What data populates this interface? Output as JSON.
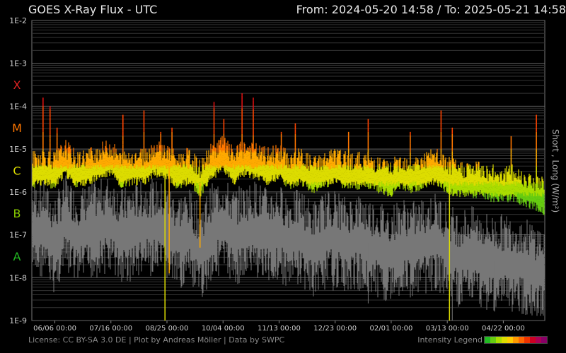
{
  "header": {
    "title": "GOES X-Ray Flux - UTC",
    "range": "From: 2024-05-20 14:58  /  To: 2025-05-21 14:58"
  },
  "footer": {
    "license": "License: CC BY-SA 3.0 DE | Plot by Andreas Möller | Data by SWPC",
    "legend_label": "Intensity Legend",
    "legend_colors": [
      "#22bb22",
      "#66cc11",
      "#aadd00",
      "#dddd00",
      "#ffcc00",
      "#ff9900",
      "#ff6600",
      "#ee3300",
      "#cc0022",
      "#aa0055",
      "#880066"
    ]
  },
  "chart_data": {
    "type": "line",
    "title": "GOES X-Ray Flux - UTC",
    "ylabel_right": "Short , Long (W/m²)",
    "yscale": "log",
    "ylim": [
      1e-09,
      0.01
    ],
    "ytick_labels": [
      "1E-2",
      "1E-3",
      "1E-4",
      "1E-5",
      "1E-6",
      "1E-7",
      "1E-8",
      "1E-9"
    ],
    "class_labels": [
      {
        "label": "X",
        "color": "#dd2222",
        "exponent": -3.5
      },
      {
        "label": "M",
        "color": "#ff7700",
        "exponent": -4.5
      },
      {
        "label": "C",
        "color": "#dddd00",
        "exponent": -5.5
      },
      {
        "label": "B",
        "color": "#88cc00",
        "exponent": -6.5
      },
      {
        "label": "A",
        "color": "#22bb22",
        "exponent": -7.5
      }
    ],
    "xtick_labels": [
      "06/06 00:00",
      "07/16 00:00",
      "08/25 00:00",
      "10/04 00:00",
      "11/13 00:00",
      "12/23 00:00",
      "02/01 00:00",
      "03/13 00:00",
      "04/22 00:00"
    ],
    "xtick_days": [
      16.42,
      56.42,
      96.42,
      136.42,
      176.42,
      216.42,
      256.42,
      296.42,
      336.42
    ],
    "x_range_days": [
      0,
      366
    ],
    "grid": true,
    "series": [
      {
        "name": "Long",
        "color_mode": "intensity",
        "x_days": [
          0,
          8,
          16,
          24,
          32,
          40,
          48,
          56,
          64,
          72,
          80,
          88,
          96,
          104,
          112,
          120,
          128,
          136,
          144,
          152,
          160,
          168,
          176,
          184,
          192,
          200,
          208,
          216,
          224,
          232,
          240,
          248,
          256,
          264,
          272,
          280,
          288,
          296,
          304,
          312,
          320,
          328,
          336,
          344,
          352,
          360,
          366
        ],
        "log10_values": [
          -5.6,
          -5.5,
          -5.6,
          -5.3,
          -5.6,
          -5.5,
          -5.4,
          -5.3,
          -5.6,
          -5.5,
          -5.5,
          -5.3,
          -5.4,
          -5.6,
          -5.5,
          -5.8,
          -5.4,
          -5.2,
          -5.5,
          -5.3,
          -5.4,
          -5.5,
          -5.4,
          -5.6,
          -5.5,
          -5.7,
          -5.6,
          -5.5,
          -5.6,
          -5.6,
          -5.6,
          -5.7,
          -5.8,
          -5.6,
          -5.7,
          -5.6,
          -5.5,
          -5.7,
          -5.8,
          -5.8,
          -5.8,
          -5.9,
          -5.9,
          -5.9,
          -6.0,
          -6.1,
          -6.2
        ],
        "flares": [
          {
            "day": 8,
            "log10": -3.8
          },
          {
            "day": 13,
            "log10": -4.0
          },
          {
            "day": 18,
            "log10": -4.5
          },
          {
            "day": 65,
            "log10": -4.2
          },
          {
            "day": 80,
            "log10": -4.1
          },
          {
            "day": 92,
            "log10": -4.6
          },
          {
            "day": 100,
            "log10": -4.5
          },
          {
            "day": 130,
            "log10": -3.9
          },
          {
            "day": 137,
            "log10": -4.3
          },
          {
            "day": 150,
            "log10": -3.7
          },
          {
            "day": 158,
            "log10": -3.8
          },
          {
            "day": 178,
            "log10": -4.6
          },
          {
            "day": 188,
            "log10": -4.4
          },
          {
            "day": 226,
            "log10": -4.6
          },
          {
            "day": 240,
            "log10": -4.3
          },
          {
            "day": 270,
            "log10": -4.6
          },
          {
            "day": 292,
            "log10": -4.1
          },
          {
            "day": 300,
            "log10": -4.5
          },
          {
            "day": 342,
            "log10": -4.7
          },
          {
            "day": 360,
            "log10": -4.2
          }
        ]
      },
      {
        "name": "Short",
        "color": "#777777",
        "x_days": [
          0,
          8,
          16,
          24,
          32,
          40,
          48,
          56,
          64,
          72,
          80,
          88,
          96,
          104,
          112,
          120,
          128,
          136,
          144,
          152,
          160,
          168,
          176,
          184,
          192,
          200,
          208,
          216,
          224,
          232,
          240,
          248,
          256,
          264,
          272,
          280,
          288,
          296,
          304,
          312,
          320,
          328,
          336,
          344,
          352,
          360,
          366
        ],
        "log10_values": [
          -6.9,
          -6.8,
          -7.2,
          -6.7,
          -7.0,
          -6.9,
          -6.8,
          -6.7,
          -7.0,
          -6.9,
          -6.8,
          -6.8,
          -6.9,
          -7.1,
          -7.0,
          -7.4,
          -6.9,
          -6.7,
          -7.0,
          -6.9,
          -6.8,
          -7.0,
          -6.9,
          -7.1,
          -7.0,
          -7.3,
          -7.1,
          -7.0,
          -7.2,
          -7.1,
          -7.2,
          -7.3,
          -7.4,
          -7.2,
          -7.3,
          -7.2,
          -7.1,
          -7.3,
          -7.5,
          -7.4,
          -7.5,
          -7.6,
          -7.6,
          -7.6,
          -7.7,
          -7.8,
          -7.9
        ]
      }
    ]
  }
}
